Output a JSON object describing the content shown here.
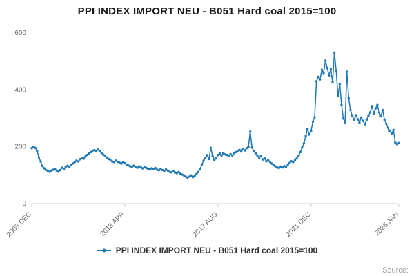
{
  "title": "PPI INDEX IMPORT NEU - B051 Hard coal 2015=100",
  "legend": {
    "label": "PPI INDEX IMPORT NEU - B051 Hard coal 2015=100"
  },
  "source_label": "Source:",
  "colors": {
    "series": "#1f77b4",
    "axis": "#cccccc",
    "tick_text": "#666666",
    "title_text": "#1a1a1a"
  },
  "chart_data": {
    "type": "line",
    "title": "PPI INDEX IMPORT NEU - B051 Hard coal 2015=100",
    "xlabel": "",
    "ylabel": "",
    "ylim": [
      0,
      600
    ],
    "y_ticks": [
      0,
      200,
      400,
      600
    ],
    "x_start": "2008 DEC",
    "x_end": "2026 JAN",
    "frequency": "monthly",
    "grid": false,
    "legend_position": "bottom",
    "x_ticks": [
      {
        "label": "2008 DEC",
        "index": 0
      },
      {
        "label": "2013 APR",
        "index": 52
      },
      {
        "label": "2017 AUG",
        "index": 104
      },
      {
        "label": "2021 DEC",
        "index": 156
      },
      {
        "label": "2026 JAN",
        "index": 205
      }
    ],
    "series": [
      {
        "name": "PPI INDEX IMPORT NEU - B051 Hard coal 2015=100",
        "marker": "circle",
        "values": [
          195,
          200,
          196,
          185,
          162,
          148,
          132,
          124,
          118,
          114,
          112,
          116,
          119,
          121,
          116,
          112,
          118,
          126,
          122,
          129,
          133,
          128,
          136,
          141,
          146,
          151,
          148,
          156,
          161,
          158,
          166,
          171,
          176,
          181,
          186,
          188,
          184,
          190,
          184,
          178,
          172,
          167,
          162,
          157,
          152,
          148,
          146,
          151,
          147,
          144,
          141,
          146,
          142,
          137,
          134,
          131,
          129,
          133,
          128,
          126,
          131,
          127,
          124,
          129,
          125,
          122,
          120,
          124,
          121,
          125,
          119,
          117,
          122,
          118,
          115,
          120,
          116,
          112,
          110,
          114,
          109,
          107,
          111,
          105,
          102,
          99,
          95,
          91,
          95,
          99,
          93,
          98,
          104,
          111,
          121,
          137,
          151,
          161,
          170,
          157,
          196,
          167,
          154,
          159,
          171,
          176,
          169,
          177,
          173,
          171,
          167,
          174,
          169,
          177,
          181,
          185,
          189,
          183,
          191,
          187,
          195,
          199,
          253,
          197,
          185,
          177,
          169,
          161,
          167,
          155,
          159,
          149,
          153,
          147,
          141,
          137,
          131,
          127,
          125,
          130,
          127,
          132,
          129,
          136,
          143,
          149,
          146,
          153,
          159,
          169,
          181,
          197,
          212,
          238,
          263,
          243,
          255,
          288,
          304,
          430,
          446,
          437,
          471,
          459,
          503,
          477,
          451,
          473,
          427,
          531,
          468,
          380,
          421,
          347,
          299,
          286,
          464,
          371,
          329,
          309,
          295,
          311,
          297,
          285,
          303,
          291,
          279,
          295,
          309,
          321,
          343,
          317,
          335,
          347,
          321,
          307,
          329,
          295,
          281,
          267,
          255,
          247,
          259,
          215,
          209,
          213
        ]
      }
    ]
  }
}
